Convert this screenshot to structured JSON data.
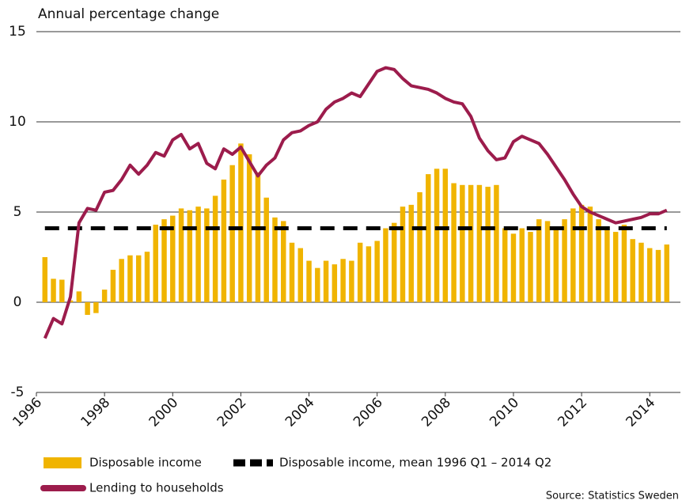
{
  "chart_data": {
    "type": "bar-line",
    "y_label": "Annual percentage change",
    "source": "Source: Statistics Sweden",
    "x": [
      1996.25,
      1996.5,
      1996.75,
      1997,
      1997.25,
      1997.5,
      1997.75,
      1998,
      1998.25,
      1998.5,
      1998.75,
      1999,
      1999.25,
      1999.5,
      1999.75,
      2000,
      2000.25,
      2000.5,
      2000.75,
      2001,
      2001.25,
      2001.5,
      2001.75,
      2002,
      2002.25,
      2002.5,
      2002.75,
      2003,
      2003.25,
      2003.5,
      2003.75,
      2004,
      2004.25,
      2004.5,
      2004.75,
      2005,
      2005.25,
      2005.5,
      2005.75,
      2006,
      2006.25,
      2006.5,
      2006.75,
      2007,
      2007.25,
      2007.5,
      2007.75,
      2008,
      2008.25,
      2008.5,
      2008.75,
      2009,
      2009.25,
      2009.5,
      2009.75,
      2010,
      2010.25,
      2010.5,
      2010.75,
      2011,
      2011.25,
      2011.5,
      2011.75,
      2012,
      2012.25,
      2012.5,
      2012.75,
      2013,
      2013.25,
      2013.5,
      2013.75,
      2014,
      2014.25,
      2014.5
    ],
    "xlim": [
      1996,
      2014.9
    ],
    "xticks": [
      1996,
      1998,
      2000,
      2002,
      2004,
      2006,
      2008,
      2010,
      2012,
      2014
    ],
    "ylim": [
      -5,
      15
    ],
    "yticks": [
      15,
      10,
      5,
      0,
      -5
    ],
    "grid": true,
    "series": [
      {
        "name": "Disposable income",
        "type": "bar",
        "color": "#f0b400",
        "values": [
          2.5,
          1.3,
          1.25,
          0.1,
          0.6,
          -0.7,
          -0.6,
          0.7,
          1.8,
          2.4,
          2.6,
          2.6,
          2.8,
          4.3,
          4.6,
          4.8,
          5.2,
          5.1,
          5.3,
          5.2,
          5.9,
          6.8,
          7.6,
          8.8,
          8.2,
          7.2,
          5.8,
          4.7,
          4.5,
          3.3,
          3.0,
          2.3,
          1.9,
          2.3,
          2.1,
          2.4,
          2.3,
          3.3,
          3.1,
          3.4,
          4.1,
          4.4,
          5.3,
          5.4,
          6.1,
          7.1,
          7.4,
          7.4,
          6.6,
          6.5,
          6.5,
          6.5,
          6.4,
          6.5,
          4.1,
          3.8,
          4.1,
          3.9,
          4.6,
          4.5,
          4.0,
          4.6,
          5.2,
          5.4,
          5.3,
          4.6,
          4.2,
          3.9,
          4.3,
          3.5,
          3.3,
          3.0,
          2.9,
          3.2
        ]
      },
      {
        "name": "Disposable income, mean 1996 Q1 – 2014 Q2",
        "type": "mean",
        "color": "#000000",
        "value": 4.1
      },
      {
        "name": "Lending to households",
        "type": "line",
        "color": "#9c1c4c",
        "values": [
          -2.0,
          -0.9,
          -1.2,
          0.3,
          4.4,
          5.2,
          5.1,
          6.1,
          6.2,
          6.8,
          7.6,
          7.1,
          7.6,
          8.3,
          8.1,
          9.0,
          9.3,
          8.5,
          8.8,
          7.7,
          7.4,
          8.5,
          8.2,
          8.6,
          7.8,
          7.0,
          7.6,
          8.0,
          9.0,
          9.4,
          9.5,
          9.8,
          10.0,
          10.7,
          11.1,
          11.3,
          11.6,
          11.4,
          12.1,
          12.8,
          13.0,
          12.9,
          12.4,
          12.0,
          11.9,
          11.8,
          11.6,
          11.3,
          11.1,
          11.0,
          10.3,
          9.1,
          8.4,
          7.9,
          8.0,
          8.9,
          9.2,
          9.0,
          8.8,
          8.2,
          7.5,
          6.8,
          6.0,
          5.3,
          5.0,
          4.8,
          4.6,
          4.4,
          4.5,
          4.6,
          4.7,
          4.9,
          4.9,
          5.1
        ]
      }
    ]
  }
}
